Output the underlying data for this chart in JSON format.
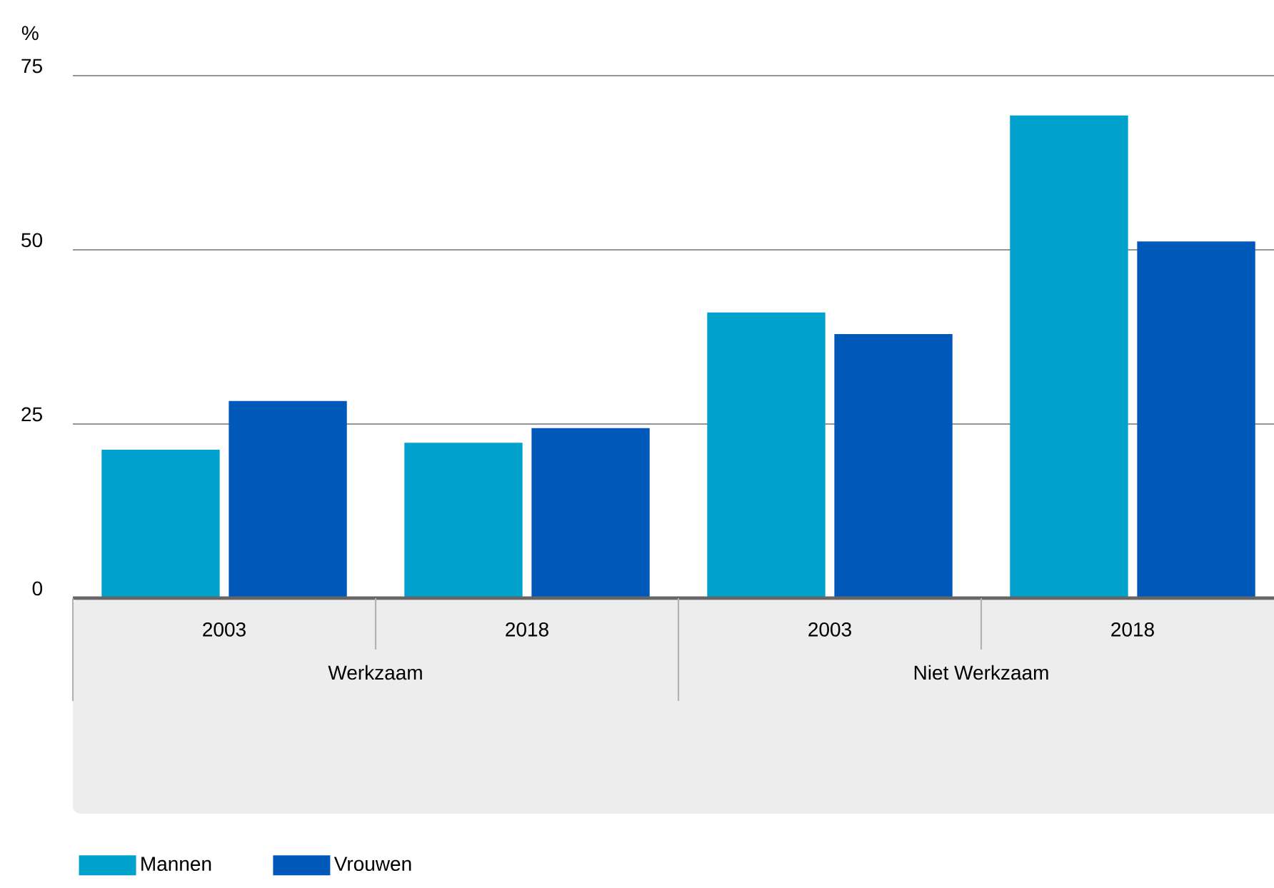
{
  "chart_data": {
    "type": "bar",
    "ylabel": "%",
    "categories": [
      "2003",
      "2018",
      "2003",
      "2018"
    ],
    "annotations": [
      "Werkzaam",
      "Niet Werkzaam"
    ],
    "series": [
      {
        "name": "Mannen",
        "color": "#00a1cd",
        "values": [
          21.3,
          22.3,
          41.0,
          69.3
        ]
      },
      {
        "name": "Vrouwen",
        "color": "#0058b8",
        "values": [
          28.3,
          24.4,
          37.9,
          51.2
        ]
      }
    ],
    "ylim": [
      0,
      75
    ],
    "yticks": [
      0,
      25,
      50,
      75
    ],
    "grid": "y",
    "legend": "bottom left"
  }
}
